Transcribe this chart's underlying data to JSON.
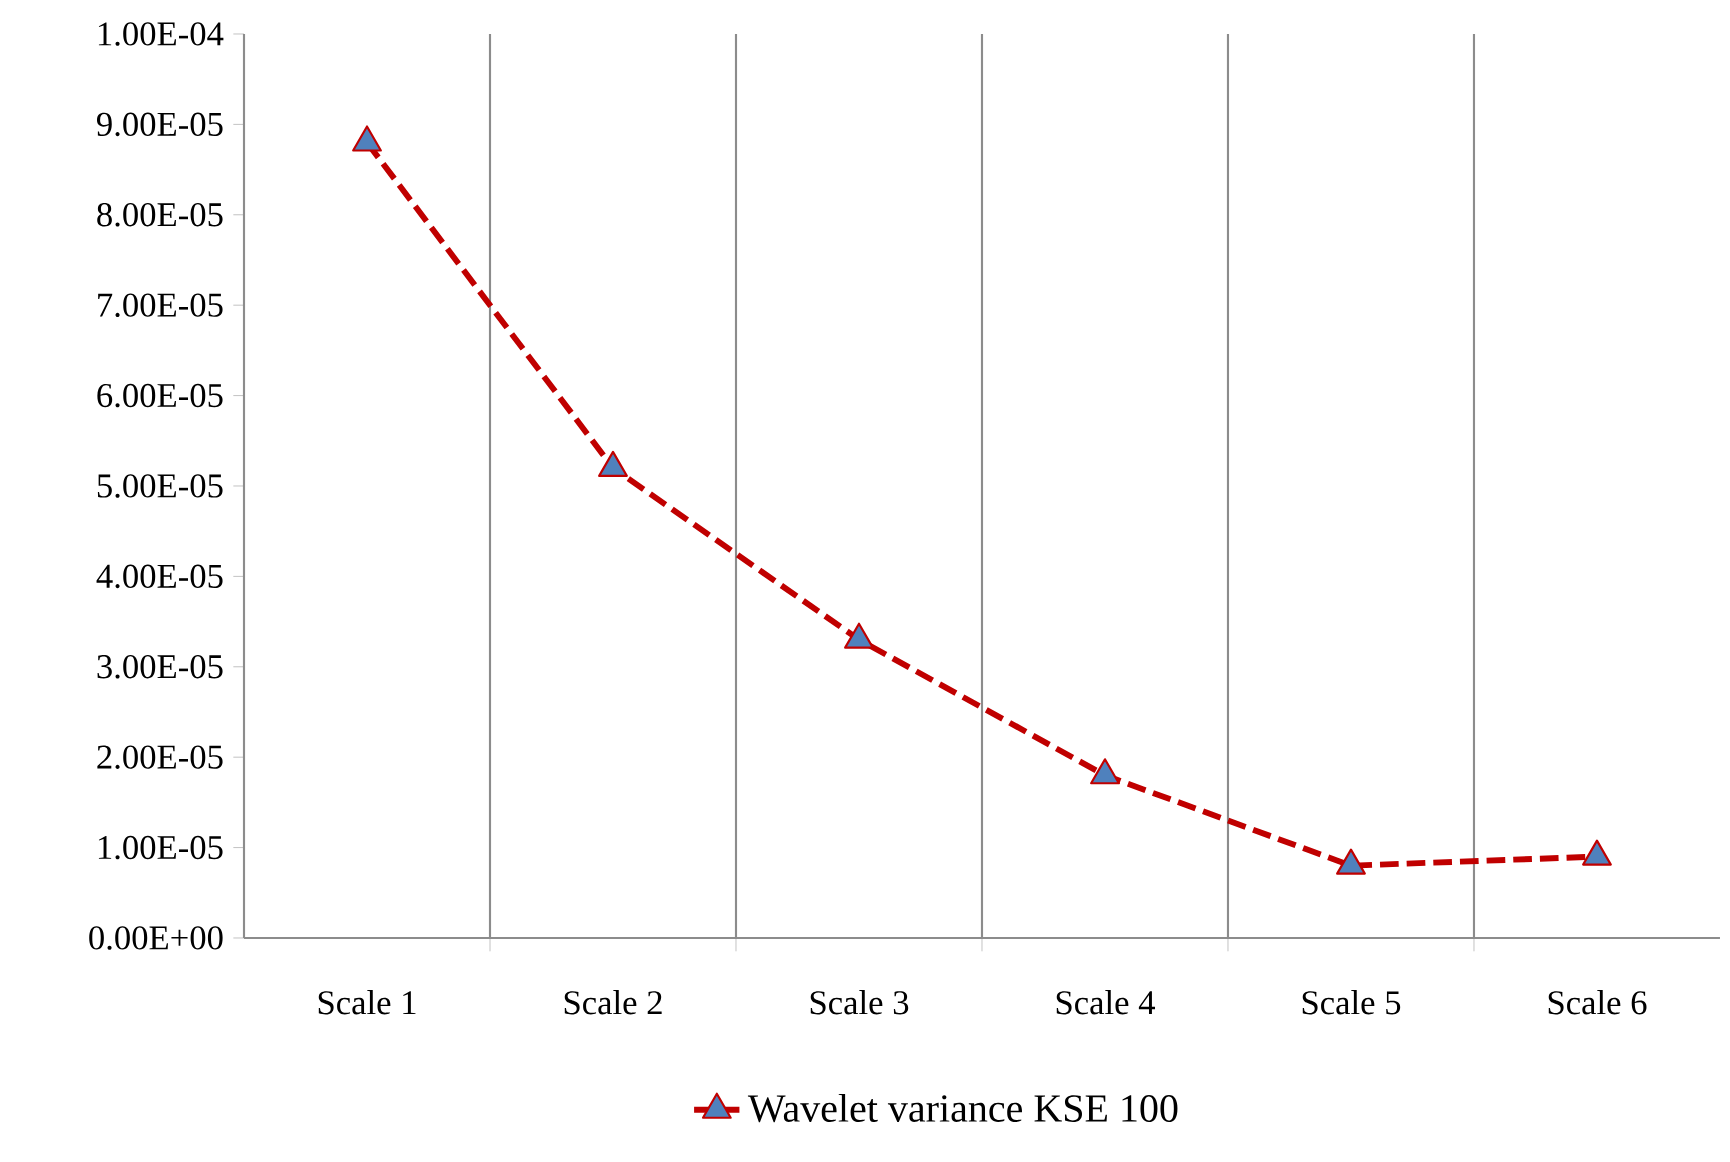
{
  "chart_data": {
    "type": "line",
    "categories": [
      "Scale 1",
      "Scale 2",
      "Scale 3",
      "Scale 4",
      "Scale 5",
      "Scale 6"
    ],
    "series": [
      {
        "name": "Wavelet variance KSE 100",
        "color": "#c00000",
        "values": [
          8.8e-05,
          5.2e-05,
          3.3e-05,
          1.8e-05,
          8e-06,
          9e-06
        ]
      }
    ],
    "ylim": [
      0,
      0.0001
    ],
    "yticks": [
      {
        "value": 0,
        "label": "0.00E+00"
      },
      {
        "value": 1e-05,
        "label": "1.00E-05"
      },
      {
        "value": 2e-05,
        "label": "2.00E-05"
      },
      {
        "value": 3e-05,
        "label": "3.00E-05"
      },
      {
        "value": 4e-05,
        "label": "4.00E-05"
      },
      {
        "value": 5e-05,
        "label": "5.00E-05"
      },
      {
        "value": 6e-05,
        "label": "6.00E-05"
      },
      {
        "value": 7e-05,
        "label": "7.00E-05"
      },
      {
        "value": 8e-05,
        "label": "8.00E-05"
      },
      {
        "value": 9e-05,
        "label": "9.00E-05"
      },
      {
        "value": 0.0001,
        "label": "1.00E-04"
      }
    ],
    "grid": "x",
    "legend": "bottom",
    "marker": "triangle",
    "line_style": "dashed"
  }
}
